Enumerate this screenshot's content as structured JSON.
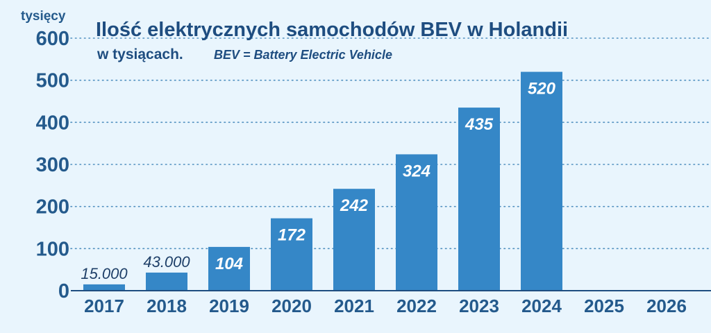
{
  "chart_data": {
    "type": "bar",
    "title": "Ilość elektrycznych samochodów BEV w Holandii",
    "subtitle": "w tysiącach.",
    "subtitle_note": "BEV = Battery Electric Vehicle",
    "ylabel": "tysięcy",
    "xlabel": "",
    "ylim": [
      0,
      600
    ],
    "yticks": [
      "0",
      "100",
      "200",
      "300",
      "400",
      "500",
      "600"
    ],
    "grid": true,
    "categories": [
      "2017",
      "2018",
      "2019",
      "2020",
      "2021",
      "2022",
      "2023",
      "2024",
      "2025",
      "2026"
    ],
    "values": [
      15,
      43,
      104,
      172,
      242,
      324,
      435,
      520,
      null,
      null
    ],
    "data_labels": [
      "15.000",
      "43.000",
      "104",
      "172",
      "242",
      "324",
      "435",
      "520",
      "",
      ""
    ],
    "bar_color": "#3587c7",
    "grid_color": "#4f8fbf"
  }
}
